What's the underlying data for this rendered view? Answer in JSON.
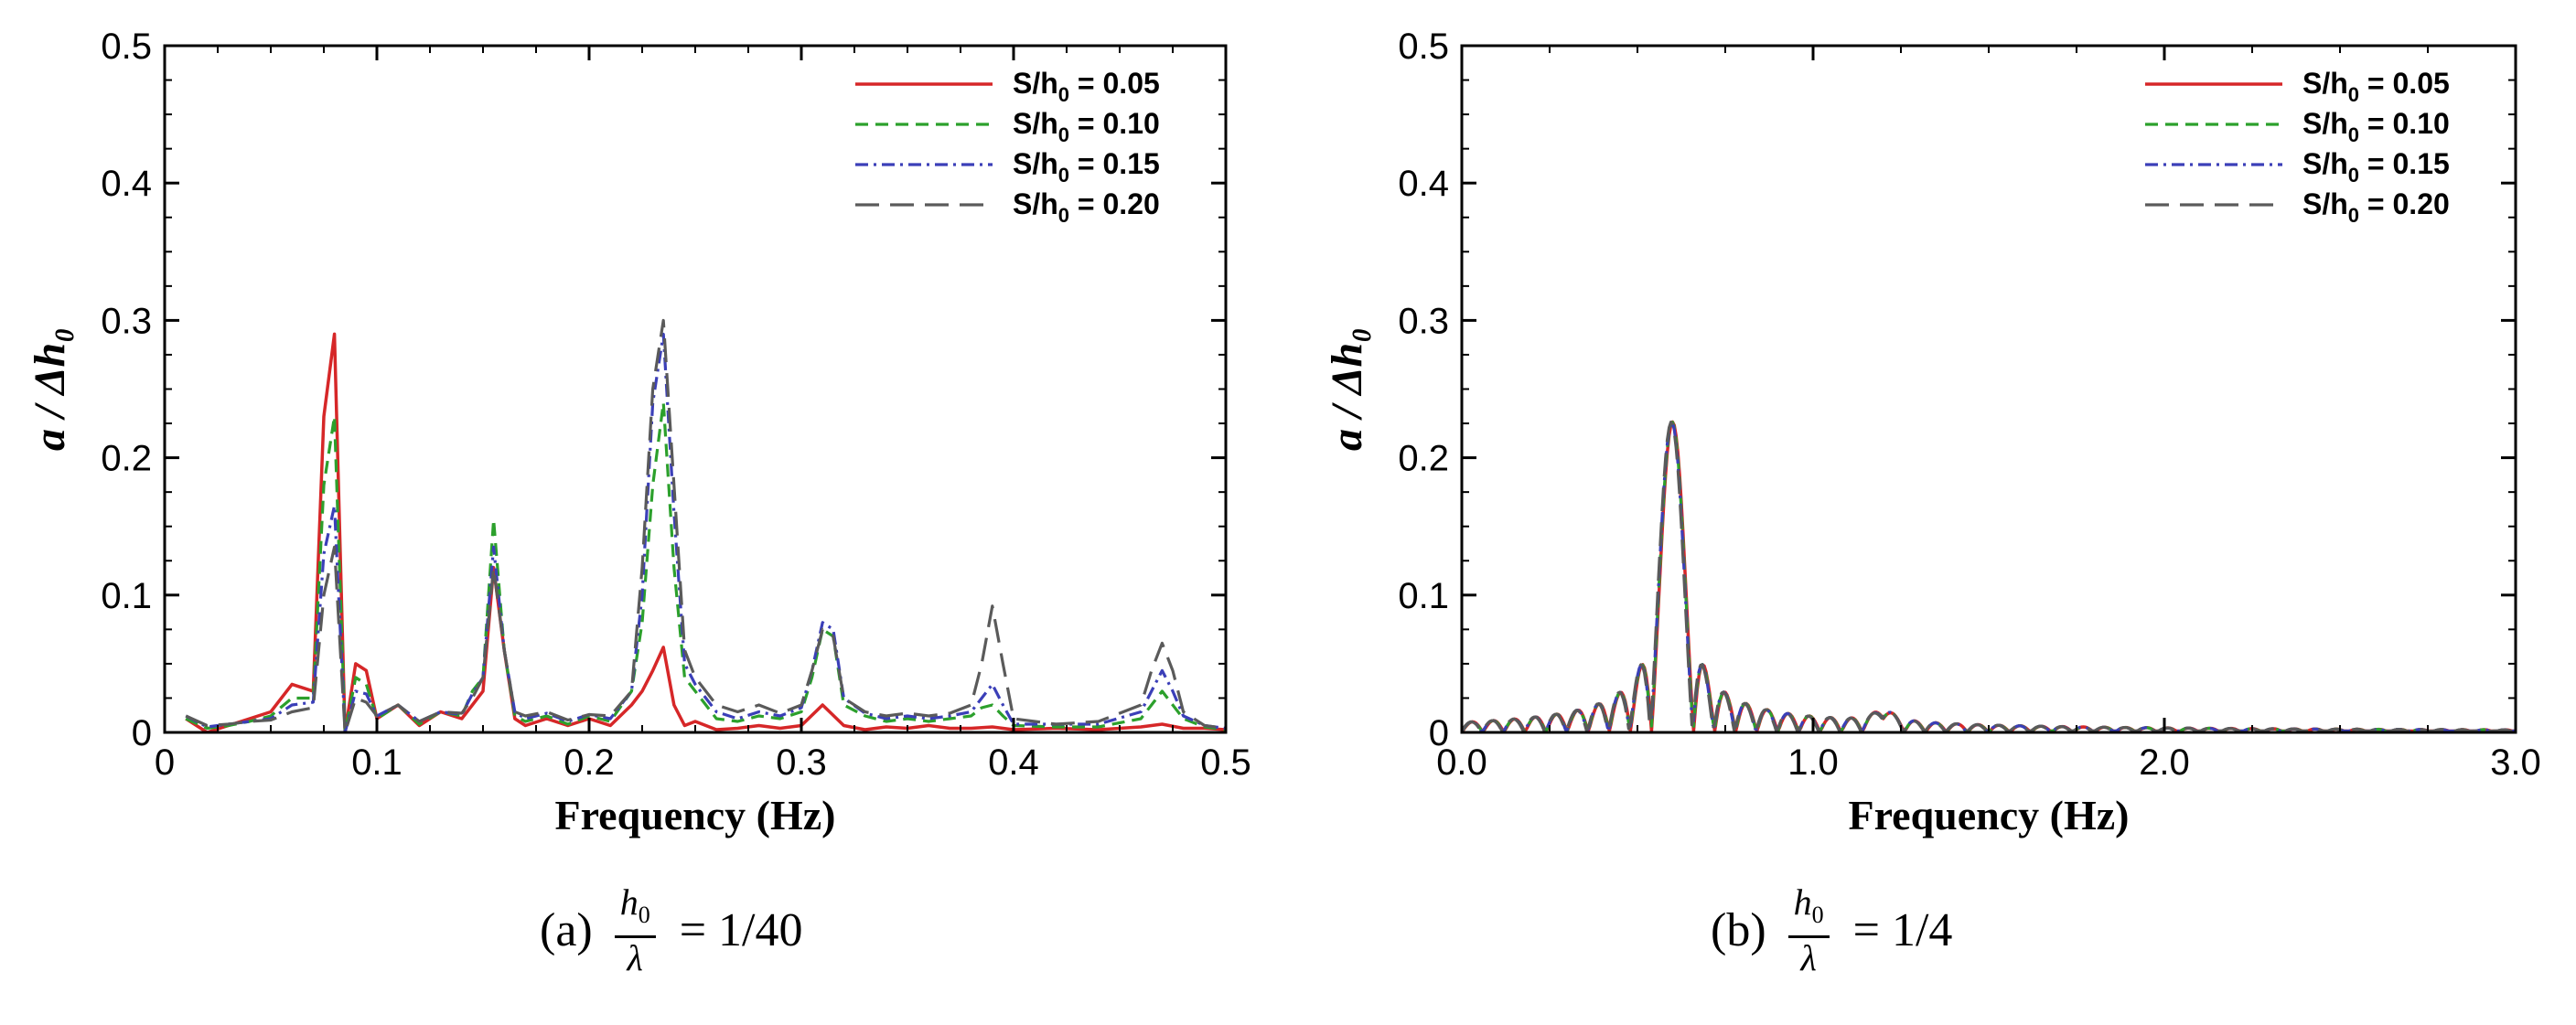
{
  "chart_data": [
    {
      "type": "line",
      "ylabel": "a / Δh₀",
      "xlabel": "Frequency (Hz)",
      "xlim": [
        0,
        0.5
      ],
      "ylim": [
        0,
        0.5
      ],
      "xticks": [
        0,
        0.1,
        0.2,
        0.3,
        0.4,
        0.5
      ],
      "xtick_labels": [
        "0",
        "0.1",
        "0.2",
        "0.3",
        "0.4",
        "0.5"
      ],
      "yticks": [
        0,
        0.1,
        0.2,
        0.3,
        0.4,
        0.5
      ],
      "ytick_labels": [
        "0",
        "0.1",
        "0.2",
        "0.3",
        "0.4",
        "0.5"
      ],
      "legend_position": "top-right",
      "grid": false,
      "series": [
        {
          "name": "S/h0 = 0.05",
          "label_main": "S/h",
          "label_sub": "0",
          "label_rest": " = 0.05",
          "color": "#d62728",
          "dash": "solid",
          "x": [
            0.01,
            0.02,
            0.03,
            0.04,
            0.05,
            0.06,
            0.07,
            0.075,
            0.08,
            0.085,
            0.09,
            0.095,
            0.1,
            0.11,
            0.12,
            0.13,
            0.14,
            0.145,
            0.15,
            0.155,
            0.16,
            0.165,
            0.17,
            0.18,
            0.19,
            0.2,
            0.21,
            0.22,
            0.225,
            0.23,
            0.235,
            0.24,
            0.245,
            0.25,
            0.26,
            0.27,
            0.28,
            0.29,
            0.3,
            0.31,
            0.32,
            0.33,
            0.34,
            0.35,
            0.36,
            0.37,
            0.38,
            0.39,
            0.4,
            0.42,
            0.44,
            0.46,
            0.47,
            0.48,
            0.49,
            0.5
          ],
          "y": [
            0.01,
            0.0,
            0.005,
            0.01,
            0.015,
            0.035,
            0.03,
            0.23,
            0.29,
            0.0,
            0.05,
            0.045,
            0.01,
            0.02,
            0.005,
            0.015,
            0.01,
            0.02,
            0.03,
            0.12,
            0.06,
            0.01,
            0.005,
            0.01,
            0.005,
            0.01,
            0.005,
            0.02,
            0.03,
            0.045,
            0.062,
            0.02,
            0.005,
            0.008,
            0.002,
            0.003,
            0.005,
            0.003,
            0.005,
            0.02,
            0.005,
            0.002,
            0.004,
            0.003,
            0.005,
            0.003,
            0.003,
            0.004,
            0.002,
            0.003,
            0.002,
            0.004,
            0.006,
            0.003,
            0.003,
            0.002
          ]
        },
        {
          "name": "S/h0 = 0.10",
          "label_main": "S/h",
          "label_sub": "0",
          "label_rest": " = 0.10",
          "color": "#2ca02c",
          "dash": "dashed",
          "x": [
            0.01,
            0.02,
            0.03,
            0.04,
            0.05,
            0.06,
            0.07,
            0.075,
            0.08,
            0.085,
            0.09,
            0.095,
            0.1,
            0.11,
            0.12,
            0.13,
            0.14,
            0.145,
            0.15,
            0.155,
            0.16,
            0.165,
            0.17,
            0.18,
            0.19,
            0.2,
            0.21,
            0.22,
            0.225,
            0.23,
            0.235,
            0.24,
            0.245,
            0.25,
            0.26,
            0.27,
            0.28,
            0.29,
            0.3,
            0.305,
            0.31,
            0.315,
            0.32,
            0.33,
            0.34,
            0.35,
            0.36,
            0.37,
            0.38,
            0.385,
            0.39,
            0.395,
            0.4,
            0.42,
            0.44,
            0.46,
            0.465,
            0.47,
            0.475,
            0.48,
            0.49,
            0.5
          ],
          "y": [
            0.01,
            0.003,
            0.005,
            0.008,
            0.012,
            0.025,
            0.025,
            0.18,
            0.23,
            0.0,
            0.04,
            0.035,
            0.01,
            0.02,
            0.006,
            0.015,
            0.012,
            0.03,
            0.04,
            0.155,
            0.06,
            0.012,
            0.008,
            0.012,
            0.006,
            0.012,
            0.008,
            0.03,
            0.08,
            0.18,
            0.24,
            0.12,
            0.04,
            0.03,
            0.01,
            0.008,
            0.012,
            0.01,
            0.015,
            0.04,
            0.075,
            0.07,
            0.02,
            0.012,
            0.008,
            0.01,
            0.008,
            0.01,
            0.012,
            0.018,
            0.02,
            0.012,
            0.005,
            0.004,
            0.004,
            0.01,
            0.02,
            0.03,
            0.02,
            0.01,
            0.004,
            0.002
          ]
        },
        {
          "name": "S/h0 = 0.15",
          "label_main": "S/h",
          "label_sub": "0",
          "label_rest": " = 0.15",
          "color": "#3b3fb8",
          "dash": "dashdot",
          "x": [
            0.01,
            0.02,
            0.03,
            0.04,
            0.05,
            0.06,
            0.07,
            0.075,
            0.08,
            0.085,
            0.09,
            0.095,
            0.1,
            0.11,
            0.12,
            0.13,
            0.14,
            0.145,
            0.15,
            0.155,
            0.16,
            0.165,
            0.17,
            0.18,
            0.19,
            0.2,
            0.21,
            0.22,
            0.225,
            0.23,
            0.235,
            0.24,
            0.245,
            0.25,
            0.26,
            0.27,
            0.28,
            0.29,
            0.3,
            0.305,
            0.31,
            0.315,
            0.32,
            0.33,
            0.34,
            0.35,
            0.36,
            0.37,
            0.38,
            0.385,
            0.39,
            0.395,
            0.4,
            0.42,
            0.44,
            0.46,
            0.465,
            0.47,
            0.475,
            0.48,
            0.49,
            0.5
          ],
          "y": [
            0.012,
            0.004,
            0.006,
            0.008,
            0.01,
            0.02,
            0.022,
            0.13,
            0.165,
            0.0,
            0.03,
            0.028,
            0.012,
            0.02,
            0.008,
            0.015,
            0.013,
            0.028,
            0.04,
            0.135,
            0.06,
            0.015,
            0.01,
            0.014,
            0.008,
            0.013,
            0.01,
            0.03,
            0.1,
            0.24,
            0.29,
            0.16,
            0.05,
            0.035,
            0.015,
            0.01,
            0.015,
            0.012,
            0.018,
            0.045,
            0.08,
            0.075,
            0.025,
            0.014,
            0.01,
            0.012,
            0.01,
            0.012,
            0.015,
            0.025,
            0.035,
            0.02,
            0.006,
            0.006,
            0.006,
            0.015,
            0.03,
            0.045,
            0.03,
            0.012,
            0.005,
            0.003
          ]
        },
        {
          "name": "S/h0 = 0.20",
          "label_main": "S/h",
          "label_sub": "0",
          "label_rest": " = 0.20",
          "color": "#5a5a5a",
          "dash": "longdash",
          "x": [
            0.01,
            0.02,
            0.03,
            0.04,
            0.05,
            0.06,
            0.07,
            0.075,
            0.08,
            0.085,
            0.09,
            0.095,
            0.1,
            0.11,
            0.12,
            0.13,
            0.14,
            0.145,
            0.15,
            0.155,
            0.16,
            0.165,
            0.17,
            0.18,
            0.19,
            0.2,
            0.21,
            0.22,
            0.225,
            0.23,
            0.235,
            0.24,
            0.245,
            0.25,
            0.26,
            0.27,
            0.28,
            0.29,
            0.3,
            0.305,
            0.31,
            0.315,
            0.32,
            0.33,
            0.34,
            0.35,
            0.36,
            0.37,
            0.38,
            0.385,
            0.39,
            0.395,
            0.4,
            0.42,
            0.44,
            0.46,
            0.465,
            0.47,
            0.475,
            0.48,
            0.49,
            0.5
          ],
          "y": [
            0.012,
            0.005,
            0.006,
            0.008,
            0.009,
            0.015,
            0.018,
            0.1,
            0.135,
            0.0,
            0.025,
            0.022,
            0.012,
            0.02,
            0.008,
            0.015,
            0.014,
            0.025,
            0.04,
            0.12,
            0.06,
            0.015,
            0.012,
            0.015,
            0.009,
            0.013,
            0.012,
            0.03,
            0.12,
            0.25,
            0.3,
            0.18,
            0.06,
            0.04,
            0.02,
            0.015,
            0.02,
            0.014,
            0.02,
            0.045,
            0.075,
            0.07,
            0.025,
            0.015,
            0.012,
            0.014,
            0.012,
            0.014,
            0.02,
            0.05,
            0.092,
            0.05,
            0.01,
            0.006,
            0.008,
            0.02,
            0.045,
            0.065,
            0.045,
            0.015,
            0.005,
            0.003
          ]
        }
      ]
    },
    {
      "type": "line",
      "ylabel": "a / Δh₀",
      "xlabel": "Frequency (Hz)",
      "xlim": [
        0,
        3.0
      ],
      "ylim": [
        0,
        0.5
      ],
      "xticks": [
        0,
        1.0,
        2.0,
        3.0
      ],
      "xtick_labels": [
        "0.0",
        "1.0",
        "2.0",
        "3.0"
      ],
      "yticks": [
        0,
        0.1,
        0.2,
        0.3,
        0.4,
        0.5
      ],
      "ytick_labels": [
        "0",
        "0.1",
        "0.2",
        "0.3",
        "0.4",
        "0.5"
      ],
      "legend_position": "top-right",
      "grid": false,
      "peak": {
        "frequency": 0.6,
        "amplitude": 0.226
      },
      "series": [
        {
          "name": "S/h0 = 0.05",
          "label_main": "S/h",
          "label_sub": "0",
          "label_rest": " = 0.05",
          "color": "#d62728",
          "dash": "solid"
        },
        {
          "name": "S/h0 = 0.10",
          "label_main": "S/h",
          "label_sub": "0",
          "label_rest": " = 0.10",
          "color": "#2ca02c",
          "dash": "dashed"
        },
        {
          "name": "S/h0 = 0.15",
          "label_main": "S/h",
          "label_sub": "0",
          "label_rest": " = 0.15",
          "color": "#3b3fb8",
          "dash": "dashdot"
        },
        {
          "name": "S/h0 = 0.20",
          "label_main": "S/h",
          "label_sub": "0",
          "label_rest": " = 0.20",
          "color": "#5a5a5a",
          "dash": "longdash"
        }
      ]
    }
  ],
  "captions": [
    {
      "label": "(a)",
      "frac_num": "h",
      "frac_num_sub": "0",
      "frac_den": "λ",
      "value": "= 1/40"
    },
    {
      "label": "(b)",
      "frac_num": "h",
      "frac_num_sub": "0",
      "frac_den": "λ",
      "value": "= 1/4"
    }
  ]
}
